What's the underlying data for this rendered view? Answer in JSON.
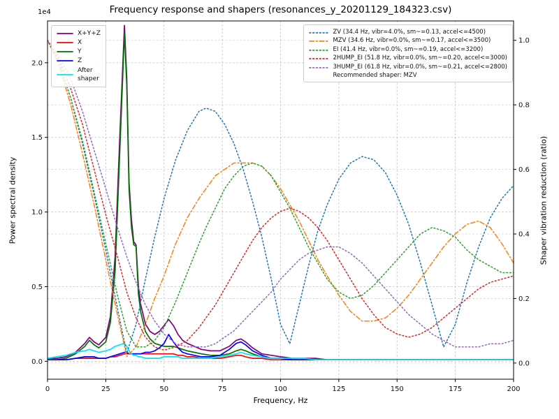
{
  "title": "Frequency response and shapers (resonances_y_20201129_184323.csv)",
  "axes": {
    "xlabel": "Frequency, Hz",
    "ylabel_left": "Power spectral density",
    "ylabel_right": "Shaper vibration reduction (ratio)",
    "offset_text": "1e4"
  },
  "legend_psd": {
    "items": [
      {
        "label": "X+Y+Z",
        "color": "#800080",
        "style": "solid"
      },
      {
        "label": "X",
        "color": "#ff0000",
        "style": "solid"
      },
      {
        "label": "Y",
        "color": "#007000",
        "style": "solid"
      },
      {
        "label": "Z",
        "color": "#0000ff",
        "style": "solid"
      },
      {
        "label": "After\nshaper",
        "color": "#00e5ee",
        "style": "solid"
      }
    ]
  },
  "legend_shapers": {
    "items": [
      {
        "label": "ZV (34.4 Hz, vibr=4.0%, sm~=0.13, accel<=4500)",
        "color": "#1f77b4",
        "style": "dotted"
      },
      {
        "label": "MZV (34.6 Hz, vibr=0.0%, sm~=0.17, accel<=3500)",
        "color": "#ff7f0e",
        "style": "dashdot"
      },
      {
        "label": "EI (41.4 Hz, vibr=0.0%, sm~=0.19, accel<=3200)",
        "color": "#2ca02c",
        "style": "dotted"
      },
      {
        "label": "2HUMP_EI (51.8 Hz, vibr=0.0%, sm~=0.20, accel<=3000)",
        "color": "#d62728",
        "style": "dotted"
      },
      {
        "label": "3HUMP_EI (61.8 Hz, vibr=0.0%, sm~=0.21, accel<=2800)",
        "color": "#9467bd",
        "style": "dotted"
      }
    ],
    "note": "Recommended shaper: MZV"
  },
  "chart_data": {
    "type": "line",
    "title": "Frequency response and shapers (resonances_y_20201129_184323.csv)",
    "xlabel": "Frequency, Hz",
    "ylabel_left": "Power spectral density (x1e4)",
    "ylabel_right": "Shaper vibration reduction (ratio)",
    "xlim": [
      0,
      200
    ],
    "left_ylim": [
      -0.12,
      2.28
    ],
    "right_ylim": [
      -0.05,
      1.06
    ],
    "grid": true,
    "legend_positions": [
      "upper-left",
      "upper-right"
    ],
    "xticks": {
      "values": [
        0,
        25,
        50,
        75,
        100,
        125,
        150,
        175,
        200
      ],
      "labels": [
        "0",
        "25",
        "50",
        "75",
        "100",
        "125",
        "150",
        "175",
        "200"
      ]
    },
    "yticks_left": {
      "values": [
        0.0,
        0.5,
        1.0,
        1.5,
        2.0
      ],
      "labels": [
        "0.0",
        "0.5",
        "1.0",
        "1.5",
        "2.0"
      ]
    },
    "yticks_right": {
      "values": [
        0.0,
        0.2,
        0.4,
        0.6,
        0.8,
        1.0
      ],
      "labels": [
        "0.0",
        "0.2",
        "0.4",
        "0.6",
        "0.8",
        "1.0"
      ]
    },
    "series": [
      {
        "name": "X+Y+Z",
        "axis": "left",
        "color": "#800080",
        "style": "solid",
        "x": [
          0,
          4,
          8,
          12,
          16,
          18,
          20,
          22,
          25,
          27,
          29,
          31,
          33,
          34,
          35,
          36,
          37,
          38,
          39,
          40,
          42,
          44,
          46,
          48,
          50,
          52,
          54,
          56,
          58,
          60,
          63,
          66,
          70,
          74,
          78,
          81,
          83,
          85,
          88,
          92,
          96,
          100,
          105,
          110,
          115,
          120,
          130,
          140,
          150,
          160,
          170,
          180,
          190,
          200
        ],
        "y": [
          0.02,
          0.02,
          0.03,
          0.06,
          0.12,
          0.16,
          0.13,
          0.11,
          0.16,
          0.3,
          0.7,
          1.5,
          2.25,
          1.9,
          1.2,
          0.95,
          0.8,
          0.78,
          0.5,
          0.38,
          0.25,
          0.2,
          0.18,
          0.2,
          0.24,
          0.28,
          0.24,
          0.18,
          0.14,
          0.12,
          0.1,
          0.08,
          0.07,
          0.07,
          0.1,
          0.14,
          0.15,
          0.13,
          0.09,
          0.05,
          0.04,
          0.03,
          0.02,
          0.02,
          0.02,
          0.01,
          0.01,
          0.01,
          0.01,
          0.01,
          0.01,
          0.01,
          0.01,
          0.01
        ]
      },
      {
        "name": "X",
        "axis": "left",
        "color": "#ff0000",
        "style": "solid",
        "x": [
          0,
          4,
          8,
          12,
          16,
          18,
          20,
          22,
          25,
          27,
          29,
          31,
          33,
          34,
          35,
          36,
          37,
          38,
          39,
          40,
          42,
          44,
          46,
          48,
          50,
          52,
          54,
          56,
          58,
          60,
          63,
          66,
          70,
          74,
          78,
          81,
          83,
          85,
          88,
          92,
          96,
          100,
          105,
          110,
          115,
          120,
          130,
          140,
          150,
          160,
          170,
          180,
          190,
          200
        ],
        "y": [
          0.01,
          0.01,
          0.01,
          0.02,
          0.02,
          0.02,
          0.02,
          0.02,
          0.02,
          0.03,
          0.03,
          0.04,
          0.05,
          0.05,
          0.05,
          0.05,
          0.05,
          0.05,
          0.05,
          0.05,
          0.05,
          0.05,
          0.05,
          0.05,
          0.05,
          0.05,
          0.05,
          0.04,
          0.04,
          0.03,
          0.03,
          0.02,
          0.02,
          0.02,
          0.03,
          0.04,
          0.04,
          0.03,
          0.02,
          0.02,
          0.01,
          0.01,
          0.01,
          0.01,
          0.01,
          0.01,
          0.01,
          0.01,
          0.01,
          0.01,
          0.01,
          0.01,
          0.01,
          0.01
        ]
      },
      {
        "name": "Y",
        "axis": "left",
        "color": "#007000",
        "style": "solid",
        "x": [
          0,
          4,
          8,
          12,
          16,
          18,
          20,
          22,
          25,
          27,
          29,
          31,
          33,
          34,
          35,
          36,
          37,
          38,
          39,
          40,
          42,
          44,
          46,
          48,
          50,
          52,
          54,
          56,
          58,
          60,
          63,
          66,
          70,
          74,
          78,
          81,
          83,
          85,
          88,
          92,
          96,
          100,
          105,
          110,
          115,
          120,
          130,
          140,
          150,
          160,
          170,
          180,
          190,
          200
        ],
        "y": [
          0.01,
          0.01,
          0.02,
          0.05,
          0.1,
          0.14,
          0.11,
          0.09,
          0.13,
          0.26,
          0.6,
          1.4,
          2.2,
          1.85,
          1.15,
          0.9,
          0.78,
          0.77,
          0.45,
          0.33,
          0.2,
          0.15,
          0.12,
          0.11,
          0.1,
          0.1,
          0.1,
          0.09,
          0.08,
          0.07,
          0.06,
          0.05,
          0.04,
          0.04,
          0.05,
          0.07,
          0.08,
          0.07,
          0.05,
          0.03,
          0.02,
          0.02,
          0.01,
          0.01,
          0.01,
          0.01,
          0.01,
          0.01,
          0.01,
          0.01,
          0.01,
          0.01,
          0.01,
          0.01
        ]
      },
      {
        "name": "Z",
        "axis": "left",
        "color": "#0000ff",
        "style": "solid",
        "x": [
          0,
          4,
          8,
          12,
          16,
          18,
          20,
          22,
          25,
          27,
          29,
          31,
          33,
          34,
          35,
          36,
          37,
          38,
          39,
          40,
          42,
          44,
          46,
          48,
          50,
          52,
          54,
          56,
          58,
          60,
          63,
          66,
          70,
          74,
          78,
          81,
          83,
          85,
          88,
          92,
          96,
          100,
          105,
          110,
          115,
          120,
          130,
          140,
          150,
          160,
          170,
          180,
          190,
          200
        ],
        "y": [
          0.01,
          0.01,
          0.01,
          0.02,
          0.03,
          0.03,
          0.03,
          0.02,
          0.02,
          0.03,
          0.04,
          0.05,
          0.06,
          0.06,
          0.05,
          0.05,
          0.05,
          0.05,
          0.05,
          0.05,
          0.06,
          0.06,
          0.07,
          0.09,
          0.12,
          0.18,
          0.13,
          0.09,
          0.06,
          0.05,
          0.04,
          0.03,
          0.03,
          0.04,
          0.08,
          0.12,
          0.13,
          0.11,
          0.07,
          0.04,
          0.02,
          0.02,
          0.01,
          0.01,
          0.01,
          0.01,
          0.01,
          0.01,
          0.01,
          0.01,
          0.01,
          0.01,
          0.01,
          0.01
        ]
      },
      {
        "name": "After shaper",
        "axis": "left",
        "color": "#00e5ee",
        "style": "solid",
        "x": [
          0,
          4,
          8,
          12,
          16,
          18,
          20,
          22,
          25,
          27,
          29,
          31,
          33,
          34,
          35,
          36,
          37,
          38,
          39,
          40,
          42,
          44,
          46,
          48,
          50,
          52,
          54,
          56,
          58,
          60,
          63,
          66,
          70,
          74,
          78,
          81,
          83,
          85,
          88,
          92,
          96,
          100,
          105,
          110,
          115,
          120,
          130,
          140,
          150,
          160,
          170,
          180,
          190,
          200
        ],
        "y": [
          0.02,
          0.03,
          0.04,
          0.06,
          0.07,
          0.08,
          0.07,
          0.06,
          0.07,
          0.08,
          0.1,
          0.11,
          0.12,
          0.1,
          0.07,
          0.05,
          0.04,
          0.04,
          0.03,
          0.03,
          0.02,
          0.02,
          0.02,
          0.02,
          0.03,
          0.03,
          0.03,
          0.03,
          0.02,
          0.02,
          0.02,
          0.02,
          0.02,
          0.03,
          0.04,
          0.05,
          0.06,
          0.05,
          0.04,
          0.03,
          0.02,
          0.02,
          0.02,
          0.02,
          0.01,
          0.01,
          0.01,
          0.01,
          0.01,
          0.01,
          0.01,
          0.01,
          0.01,
          0.01
        ]
      },
      {
        "name": "ZV",
        "axis": "right",
        "color": "#1f77b4",
        "style": "dotted",
        "x": [
          0,
          5,
          10,
          15,
          20,
          25,
          30,
          34,
          38,
          42,
          46,
          50,
          55,
          60,
          65,
          68,
          72,
          76,
          80,
          84,
          88,
          92,
          96,
          100,
          104,
          108,
          112,
          116,
          120,
          125,
          130,
          135,
          140,
          145,
          150,
          155,
          160,
          165,
          170,
          175,
          180,
          185,
          190,
          195,
          200
        ],
        "y": [
          1.0,
          0.93,
          0.82,
          0.68,
          0.52,
          0.35,
          0.17,
          0.03,
          0.12,
          0.26,
          0.39,
          0.51,
          0.63,
          0.72,
          0.78,
          0.79,
          0.78,
          0.74,
          0.68,
          0.6,
          0.5,
          0.39,
          0.26,
          0.12,
          0.06,
          0.18,
          0.3,
          0.41,
          0.49,
          0.57,
          0.62,
          0.64,
          0.63,
          0.59,
          0.52,
          0.43,
          0.31,
          0.18,
          0.05,
          0.12,
          0.25,
          0.36,
          0.45,
          0.51,
          0.55
        ]
      },
      {
        "name": "MZV",
        "axis": "right",
        "color": "#ff7f0e",
        "style": "dashdot",
        "x": [
          0,
          5,
          10,
          15,
          20,
          25,
          30,
          34,
          38,
          42,
          46,
          50,
          55,
          60,
          65,
          68,
          72,
          76,
          80,
          84,
          88,
          92,
          96,
          100,
          104,
          108,
          112,
          116,
          120,
          125,
          130,
          135,
          140,
          145,
          150,
          155,
          160,
          165,
          170,
          175,
          180,
          185,
          190,
          195,
          200
        ],
        "y": [
          1.0,
          0.92,
          0.8,
          0.65,
          0.49,
          0.32,
          0.15,
          0.02,
          0.05,
          0.12,
          0.2,
          0.27,
          0.37,
          0.45,
          0.51,
          0.54,
          0.58,
          0.6,
          0.62,
          0.62,
          0.62,
          0.61,
          0.58,
          0.54,
          0.49,
          0.44,
          0.38,
          0.32,
          0.27,
          0.21,
          0.16,
          0.13,
          0.13,
          0.14,
          0.17,
          0.21,
          0.26,
          0.31,
          0.36,
          0.4,
          0.43,
          0.44,
          0.42,
          0.37,
          0.31
        ]
      },
      {
        "name": "EI",
        "axis": "right",
        "color": "#2ca02c",
        "style": "dotted",
        "x": [
          0,
          5,
          10,
          15,
          20,
          25,
          30,
          34,
          38,
          42,
          46,
          50,
          55,
          60,
          65,
          68,
          72,
          76,
          80,
          84,
          88,
          92,
          96,
          100,
          104,
          108,
          112,
          116,
          120,
          125,
          130,
          135,
          140,
          145,
          150,
          155,
          160,
          165,
          170,
          175,
          180,
          185,
          190,
          195,
          200
        ],
        "y": [
          1.0,
          0.93,
          0.82,
          0.69,
          0.53,
          0.37,
          0.21,
          0.1,
          0.05,
          0.05,
          0.07,
          0.11,
          0.19,
          0.28,
          0.37,
          0.42,
          0.48,
          0.54,
          0.58,
          0.61,
          0.62,
          0.61,
          0.58,
          0.53,
          0.48,
          0.42,
          0.36,
          0.31,
          0.26,
          0.22,
          0.2,
          0.21,
          0.24,
          0.28,
          0.32,
          0.36,
          0.4,
          0.42,
          0.41,
          0.39,
          0.35,
          0.32,
          0.3,
          0.28,
          0.28
        ]
      },
      {
        "name": "2HUMP_EI",
        "axis": "right",
        "color": "#d62728",
        "style": "dotted",
        "x": [
          0,
          5,
          10,
          15,
          20,
          25,
          30,
          34,
          38,
          42,
          46,
          50,
          55,
          60,
          65,
          68,
          72,
          76,
          80,
          84,
          88,
          92,
          96,
          100,
          104,
          108,
          112,
          116,
          120,
          125,
          130,
          135,
          140,
          145,
          150,
          155,
          160,
          165,
          170,
          175,
          180,
          185,
          190,
          195,
          200
        ],
        "y": [
          1.0,
          0.94,
          0.85,
          0.74,
          0.6,
          0.46,
          0.33,
          0.22,
          0.14,
          0.08,
          0.05,
          0.04,
          0.05,
          0.07,
          0.11,
          0.14,
          0.18,
          0.23,
          0.28,
          0.33,
          0.38,
          0.42,
          0.45,
          0.47,
          0.48,
          0.47,
          0.45,
          0.42,
          0.38,
          0.32,
          0.26,
          0.2,
          0.15,
          0.11,
          0.09,
          0.08,
          0.09,
          0.11,
          0.14,
          0.17,
          0.2,
          0.23,
          0.25,
          0.26,
          0.27
        ]
      },
      {
        "name": "3HUMP_EI",
        "axis": "right",
        "color": "#9467bd",
        "style": "dotted",
        "x": [
          0,
          5,
          10,
          15,
          20,
          25,
          30,
          34,
          38,
          42,
          46,
          50,
          55,
          60,
          65,
          68,
          72,
          76,
          80,
          84,
          88,
          92,
          96,
          100,
          104,
          108,
          112,
          116,
          120,
          125,
          130,
          135,
          140,
          145,
          150,
          155,
          160,
          165,
          170,
          175,
          180,
          185,
          190,
          195,
          200
        ],
        "y": [
          1.0,
          0.95,
          0.88,
          0.78,
          0.66,
          0.54,
          0.42,
          0.33,
          0.25,
          0.18,
          0.13,
          0.09,
          0.06,
          0.05,
          0.05,
          0.05,
          0.06,
          0.08,
          0.1,
          0.13,
          0.16,
          0.19,
          0.22,
          0.26,
          0.29,
          0.32,
          0.34,
          0.35,
          0.36,
          0.36,
          0.34,
          0.31,
          0.27,
          0.23,
          0.19,
          0.15,
          0.12,
          0.09,
          0.07,
          0.05,
          0.05,
          0.05,
          0.06,
          0.06,
          0.07
        ]
      }
    ]
  }
}
